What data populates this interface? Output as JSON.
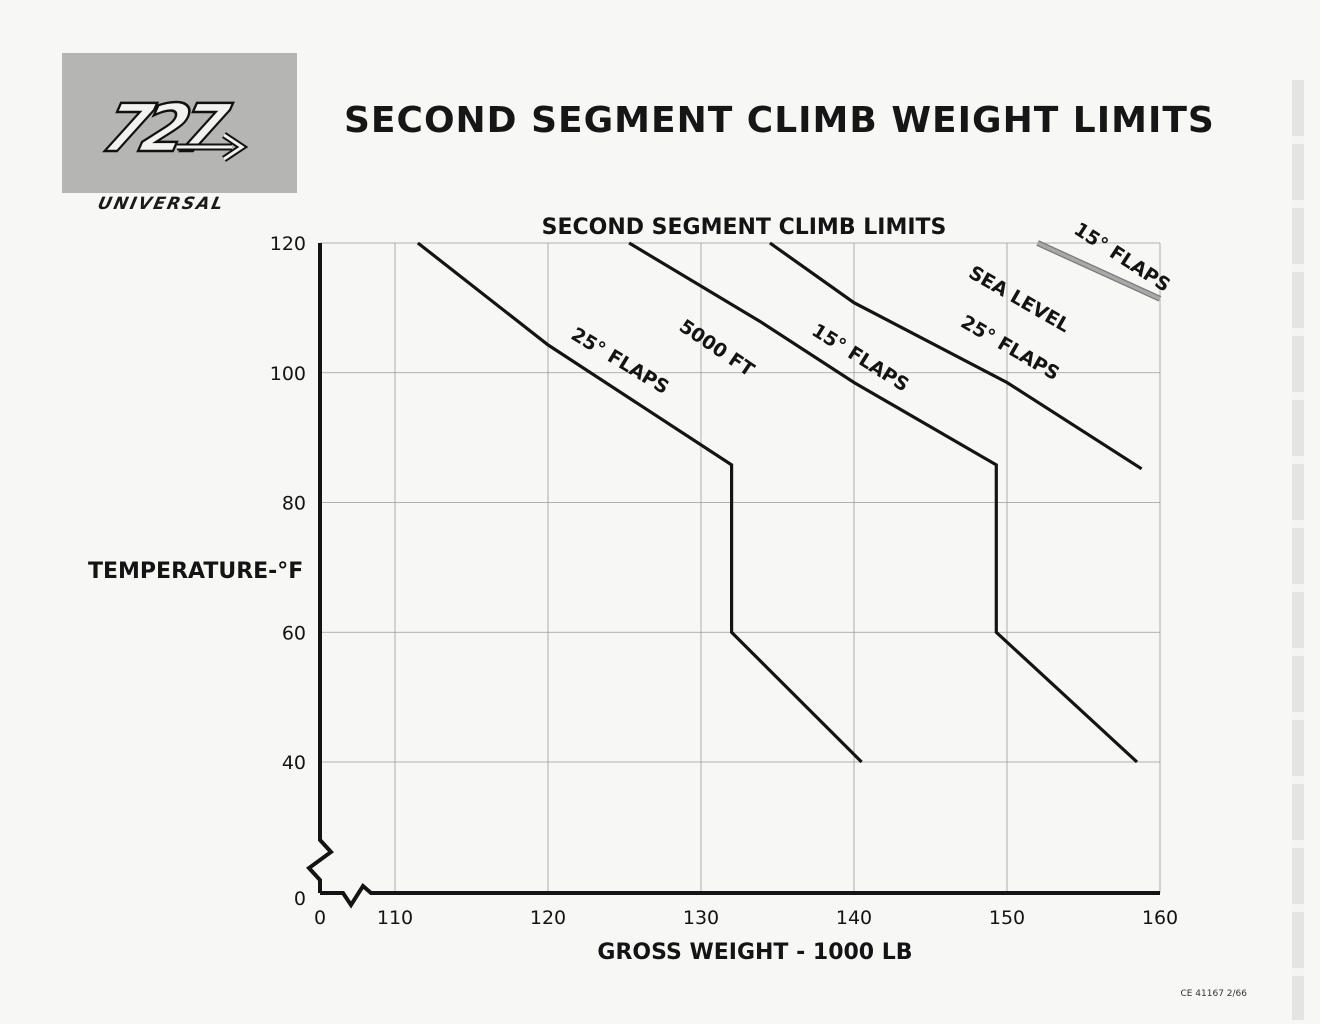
{
  "header": {
    "logo_number": "727",
    "logo_word": "UNIVERSAL",
    "title": "SECOND SEGMENT CLIMB WEIGHT LIMITS"
  },
  "footer": {
    "doc_code": "CE 41167 2/66"
  },
  "colors": {
    "line": "#141414",
    "grid": "#9a9a9a",
    "gray_series": "#a8a8a8",
    "logo_bg": "#b5b5b3"
  },
  "chart_data": {
    "type": "line",
    "title": "SECOND SEGMENT CLIMB LIMITS",
    "xlabel": "GROSS WEIGHT - 1000 LB",
    "ylabel": "TEMPERATURE-°F",
    "xlim": [
      105,
      160
    ],
    "ylim": [
      20,
      120
    ],
    "axis_break": true,
    "grid": true,
    "x_ticks": [
      0,
      110,
      120,
      130,
      140,
      150,
      160
    ],
    "x_tick_labels": [
      "0",
      "110",
      "120",
      "130",
      "140",
      "150",
      "160"
    ],
    "y_ticks": [
      0,
      40,
      60,
      80,
      100,
      120
    ],
    "y_tick_labels": [
      "0",
      "40",
      "60",
      "80",
      "100",
      "120"
    ],
    "series": [
      {
        "name": "25° FLAPS",
        "group": "5000 FT",
        "color": "#141414",
        "points": [
          [
            111.5,
            120
          ],
          [
            120,
            104.3
          ],
          [
            132,
            85.8
          ],
          [
            132,
            60
          ],
          [
            140.5,
            40
          ]
        ]
      },
      {
        "name": "15° FLAPS",
        "group": "5000 FT",
        "color": "#141414",
        "points": [
          [
            125.3,
            120
          ],
          [
            134,
            107.7
          ],
          [
            140,
            98.5
          ],
          [
            149.3,
            85.8
          ],
          [
            149.3,
            60
          ],
          [
            158.5,
            40
          ]
        ]
      },
      {
        "name": "25° FLAPS",
        "group": "SEA LEVEL",
        "color": "#141414",
        "points": [
          [
            134.5,
            120
          ],
          [
            140,
            110.8
          ],
          [
            150,
            98.5
          ],
          [
            158.8,
            85.2
          ]
        ]
      },
      {
        "name": "15° FLAPS",
        "group": "SEA LEVEL",
        "color": "#a8a8a8",
        "points": [
          [
            152,
            120
          ],
          [
            160,
            111.4
          ]
        ]
      }
    ],
    "annotations": [
      {
        "text": "25° FLAPS",
        "x": 124.5,
        "y": 101,
        "angle": 31
      },
      {
        "text": "5000 FT",
        "x": 130.8,
        "y": 103,
        "angle": 34
      },
      {
        "text": "15° FLAPS",
        "x": 140.2,
        "y": 101.5,
        "angle": 32
      },
      {
        "text": "25° FLAPS",
        "x": 150,
        "y": 103,
        "angle": 30
      },
      {
        "text": "SEA LEVEL",
        "x": 150.6,
        "y": 110.5,
        "angle": 30
      },
      {
        "text": "15° FLAPS",
        "x": 157.3,
        "y": 117,
        "angle": 33
      }
    ]
  }
}
